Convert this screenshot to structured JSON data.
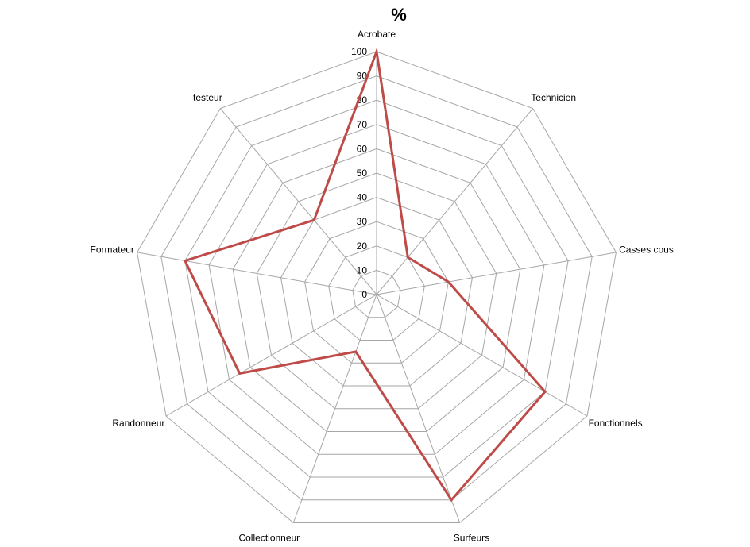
{
  "chart_data": {
    "type": "radar",
    "title": "%",
    "categories": [
      "Acrobate",
      "Technicien",
      "Casses cous",
      "Fonctionnels",
      "Surfeurs",
      "Collectionneur",
      "Randonneur",
      "Formateur",
      "testeur"
    ],
    "series": [
      {
        "values": [
          100,
          20,
          30,
          80,
          90,
          25,
          65,
          80,
          40
        ],
        "color": "#be4b48"
      }
    ],
    "ylim": [
      0,
      100
    ],
    "ticks": [
      0,
      10,
      20,
      30,
      40,
      50,
      60,
      70,
      80,
      90,
      100
    ],
    "tick_labels": [
      "0",
      "10",
      "20",
      "30",
      "40",
      "50",
      "60",
      "70",
      "80",
      "90",
      "100"
    ],
    "grid": true,
    "grid_color": "#a6a6a6",
    "legend": "none"
  }
}
